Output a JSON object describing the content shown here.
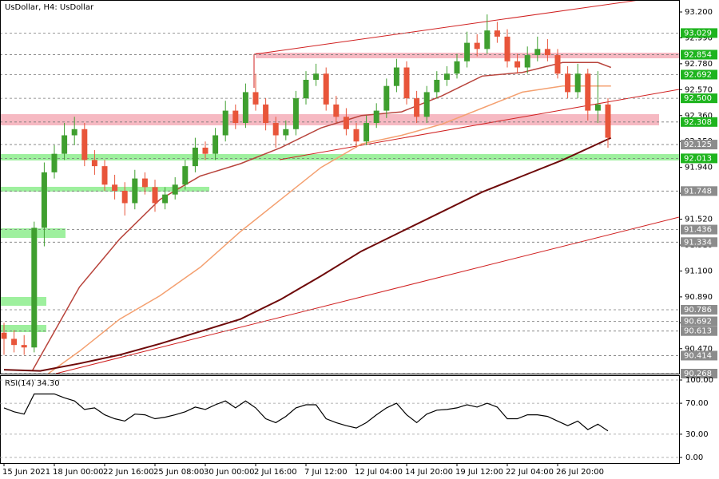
{
  "chart_data": {
    "type": "candlestick",
    "title": "UsDollar, H4:  UsDollar",
    "open": [
      90.6,
      90.55,
      90.5,
      90.48,
      91.45,
      91.9,
      92.05,
      92.2,
      92.25,
      92.0,
      91.95,
      91.8,
      91.75,
      91.65,
      91.85,
      91.78,
      91.65,
      91.72,
      91.8,
      91.95,
      92.1,
      92.05,
      92.2,
      92.4,
      92.3,
      92.55,
      92.45,
      92.3,
      92.2,
      92.25,
      92.5,
      92.65,
      92.7,
      92.45,
      92.35,
      92.25,
      92.15,
      92.3,
      92.4,
      92.6,
      92.75,
      92.5,
      92.35,
      92.55,
      92.65,
      92.7,
      92.8,
      92.95,
      92.9,
      93.05,
      93.0,
      92.8,
      92.75,
      92.85,
      92.9,
      92.85,
      92.7,
      92.55,
      92.7,
      92.4,
      92.45
    ],
    "high": [
      90.68,
      90.62,
      90.58,
      91.5,
      91.98,
      92.12,
      92.3,
      92.35,
      92.3,
      92.08,
      92.0,
      91.88,
      91.82,
      91.92,
      91.9,
      91.84,
      91.78,
      91.86,
      92.0,
      92.18,
      92.15,
      92.26,
      92.48,
      92.45,
      92.62,
      92.7,
      92.5,
      92.35,
      92.32,
      92.56,
      92.72,
      92.78,
      92.75,
      92.52,
      92.42,
      92.3,
      92.36,
      92.46,
      92.66,
      92.82,
      92.8,
      92.56,
      92.6,
      92.72,
      92.76,
      92.86,
      93.04,
      93.02,
      93.18,
      93.12,
      93.06,
      92.86,
      92.92,
      93.0,
      92.98,
      92.9,
      92.76,
      92.78,
      92.74,
      92.72,
      92.5
    ],
    "low": [
      90.42,
      90.44,
      90.42,
      90.44,
      91.3,
      91.85,
      92.0,
      92.12,
      91.95,
      91.88,
      91.75,
      91.68,
      91.55,
      91.6,
      91.72,
      91.58,
      91.6,
      91.68,
      91.76,
      91.9,
      92.0,
      92.0,
      92.15,
      92.25,
      92.26,
      92.4,
      92.24,
      92.1,
      92.16,
      92.2,
      92.45,
      92.6,
      92.4,
      92.3,
      92.2,
      92.1,
      92.12,
      92.26,
      92.34,
      92.55,
      92.45,
      92.3,
      92.3,
      92.5,
      92.6,
      92.66,
      92.75,
      92.84,
      92.86,
      92.95,
      92.75,
      92.7,
      92.7,
      92.8,
      92.8,
      92.66,
      92.5,
      92.5,
      92.32,
      92.3,
      92.1
    ],
    "close": [
      90.55,
      90.5,
      90.48,
      91.45,
      91.9,
      92.05,
      92.2,
      92.25,
      92.0,
      91.95,
      91.8,
      91.75,
      91.65,
      91.85,
      91.78,
      91.65,
      91.72,
      91.8,
      91.95,
      92.1,
      92.05,
      92.2,
      92.4,
      92.3,
      92.55,
      92.45,
      92.3,
      92.2,
      92.25,
      92.5,
      92.65,
      92.7,
      92.45,
      92.35,
      92.25,
      92.15,
      92.3,
      92.4,
      92.6,
      92.75,
      92.5,
      92.35,
      92.55,
      92.65,
      92.7,
      92.8,
      92.95,
      92.9,
      93.05,
      93.0,
      92.8,
      92.75,
      92.85,
      92.9,
      92.85,
      92.7,
      92.55,
      92.7,
      92.4,
      92.45,
      92.18
    ],
    "up_color": "#3f9f2f",
    "down_color": "#e8553a",
    "xticks": [
      {
        "value": 0,
        "label": "15 Jun 2021"
      },
      {
        "value": 5,
        "label": "18 Jun 00:00"
      },
      {
        "value": 10,
        "label": "22 Jun 16:00"
      },
      {
        "value": 15,
        "label": "25 Jun 08:00"
      },
      {
        "value": 20,
        "label": "30 Jun 00:00"
      },
      {
        "value": 25,
        "label": "2 Jul 16:00"
      },
      {
        "value": 30,
        "label": "7 Jul 12:00"
      },
      {
        "value": 35,
        "label": "12 Jul 04:00"
      },
      {
        "value": 40,
        "label": "14 Jul 20:00"
      },
      {
        "value": 45,
        "label": "19 Jul 12:00"
      },
      {
        "value": 50,
        "label": "22 Jul 04:00"
      },
      {
        "value": 55,
        "label": "26 Jul 20:00"
      }
    ],
    "ylim": [
      90.268,
      93.297
    ],
    "yticks": [
      {
        "value": 93.2,
        "label": "93.200"
      },
      {
        "value": 92.99,
        "label": "92.990"
      },
      {
        "value": 92.78,
        "label": "92.780"
      },
      {
        "value": 92.57,
        "label": "92.570"
      },
      {
        "value": 92.36,
        "label": "92.360"
      },
      {
        "value": 92.15,
        "label": "92.150"
      },
      {
        "value": 91.94,
        "label": "91.940"
      },
      {
        "value": 91.73,
        "label": "91.730"
      },
      {
        "value": 91.52,
        "label": "91.520"
      },
      {
        "value": 91.31,
        "label": "91.310"
      },
      {
        "value": 91.1,
        "label": "91.100"
      },
      {
        "value": 90.89,
        "label": "90.890"
      },
      {
        "value": 90.68,
        "label": "90.680"
      },
      {
        "value": 90.47,
        "label": "90.470"
      }
    ],
    "levels": [
      93.029,
      92.854,
      92.692,
      {
        "value": 92.5,
        "label": "92.500"
      },
      92.308,
      92.125,
      92.013,
      91.748,
      91.436,
      91.334,
      90.786,
      90.692,
      90.613,
      90.414,
      90.268
    ],
    "level_colors": [
      "#1eb41e",
      "#1eb41e",
      "#1eb41e",
      "#1eb41e",
      "#1eb41e",
      "#8c8c8c",
      "#1eb41e",
      "#8c8c8c",
      "#8c8c8c",
      "#8c8c8c",
      "#8c8c8c",
      "#8c8c8c",
      "#8c8c8c",
      "#8c8c8c",
      "#8c8c8c"
    ],
    "overlays": [
      {
        "color": "#b8443c",
        "x": [
          2.8,
          7.5,
          11.5,
          15.5,
          19.5,
          23.5,
          27.5,
          31.5,
          35.5,
          39.5,
          43.5,
          47.5,
          51.5,
          55.5,
          59,
          60.3
        ],
        "values": [
          90.29,
          90.97,
          91.36,
          91.68,
          91.87,
          91.97,
          92.1,
          92.26,
          92.36,
          92.39,
          92.52,
          92.68,
          92.71,
          92.79,
          92.79,
          92.75
        ]
      },
      {
        "color": "#f4a070",
        "x": [
          4.4,
          7.5,
          11.5,
          15.5,
          19.5,
          23.5,
          27.5,
          31.5,
          35.5,
          39.5,
          43.5,
          47.5,
          51.5,
          55.5,
          60.3
        ],
        "values": [
          90.268,
          90.45,
          90.71,
          90.9,
          91.13,
          91.42,
          91.68,
          91.94,
          92.13,
          92.2,
          92.29,
          92.42,
          92.55,
          92.6,
          92.6
        ]
      },
      {
        "color": "#6e0a0a",
        "x": [
          0,
          3.6,
          7.5,
          11.5,
          15.5,
          19.5,
          23.5,
          27.5,
          31.5,
          35.5,
          39.5,
          43.5,
          47.5,
          51.5,
          55.5,
          60.3
        ],
        "values": [
          90.3,
          90.29,
          90.35,
          90.42,
          90.51,
          90.61,
          90.71,
          90.87,
          91.06,
          91.26,
          91.42,
          91.58,
          91.74,
          91.87,
          92.0,
          92.18
        ]
      }
    ],
    "rsi": {
      "title": "RSI(14) 34.30",
      "color": "#000000",
      "values": [
        64,
        59,
        56,
        82,
        82,
        82,
        77,
        73,
        62,
        64,
        55,
        50,
        47,
        56,
        55,
        50,
        52,
        55,
        59,
        65,
        62,
        68,
        73,
        64,
        73,
        64,
        50,
        45,
        53,
        64,
        68,
        68,
        50,
        45,
        41,
        38,
        45,
        55,
        64,
        70,
        55,
        45,
        56,
        61,
        62,
        64,
        68,
        65,
        70,
        65,
        50,
        50,
        55,
        55,
        53,
        47,
        41,
        47,
        36,
        43,
        34.3
      ],
      "ylim": [
        0,
        100
      ],
      "yticks": [
        {
          "value": 100,
          "label": "100.00"
        },
        {
          "value": 70,
          "label": "70.00"
        },
        {
          "value": 30,
          "label": "30.00"
        },
        {
          "value": 0,
          "label": "0.00"
        }
      ]
    }
  }
}
